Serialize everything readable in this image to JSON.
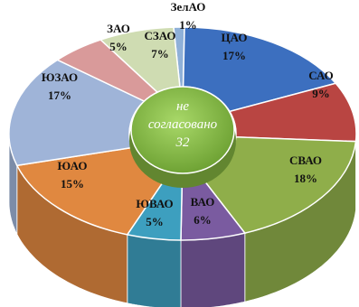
{
  "chart_data": {
    "type": "pie",
    "variant": "3d-doughnut",
    "center_label": {
      "line1": "не",
      "line2": "согласовано",
      "line3": "32"
    },
    "slices": [
      {
        "name": "ЗелАО",
        "value": 1,
        "pct_label": "1%",
        "color": "#8fb0d8"
      },
      {
        "name": "ЦАО",
        "value": 17,
        "pct_label": "17%",
        "color": "#3c6fbf"
      },
      {
        "name": "САО",
        "value": 9,
        "pct_label": "9%",
        "color": "#b94542"
      },
      {
        "name": "СВАО",
        "value": 18,
        "pct_label": "18%",
        "color": "#8fae4a"
      },
      {
        "name": "ВАО",
        "value": 6,
        "pct_label": "6%",
        "color": "#7a5ba0"
      },
      {
        "name": "ЮВАО",
        "value": 5,
        "pct_label": "5%",
        "color": "#3d9fbf"
      },
      {
        "name": "ЮАО",
        "value": 15,
        "pct_label": "15%",
        "color": "#e08840"
      },
      {
        "name": "ЮЗАО",
        "value": 17,
        "pct_label": "17%",
        "color": "#9fb4d8"
      },
      {
        "name": "ЗАО",
        "value": 5,
        "pct_label": "5%",
        "color": "#d99a9a"
      },
      {
        "name": "СЗАО",
        "value": 7,
        "pct_label": "7%",
        "color": "#cfdcb2"
      }
    ],
    "center_color": "#8cbf45"
  }
}
